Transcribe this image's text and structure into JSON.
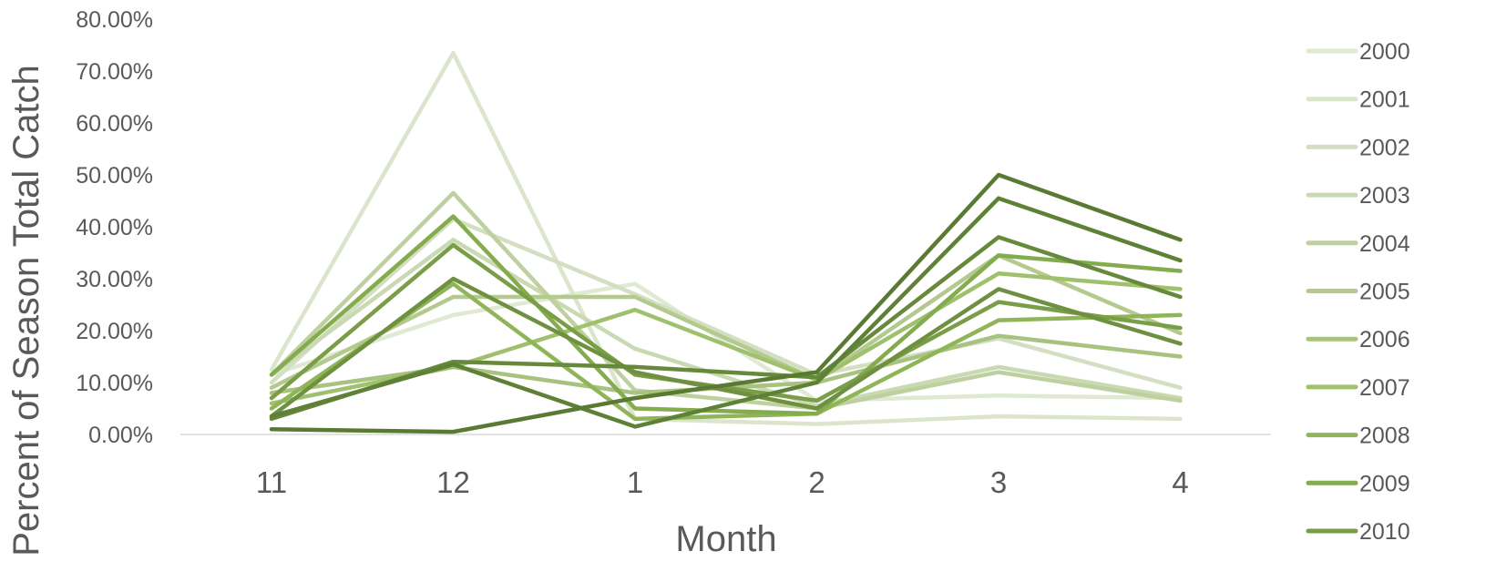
{
  "chart_data": {
    "type": "line",
    "title": "",
    "xlabel": "Month",
    "ylabel": "Percent of Season Total Catch",
    "categories": [
      "11",
      "12",
      "1",
      "2",
      "3",
      "4"
    ],
    "yticks": [
      "0.00%",
      "10.00%",
      "20.00%",
      "30.00%",
      "40.00%",
      "50.00%",
      "60.00%",
      "70.00%",
      "80.00%"
    ],
    "ylim": [
      0,
      80
    ],
    "grid": false,
    "legend_position": "right",
    "legend_labels": [
      "2000",
      "2001",
      "2002",
      "2003",
      "2004",
      "2005",
      "2006",
      "2007",
      "2008",
      "2009",
      "2010"
    ],
    "series": [
      {
        "name": "2000",
        "color": "#e0e9d2",
        "values": [
          11.5,
          23.0,
          29.0,
          6.5,
          7.5,
          7.0
        ]
      },
      {
        "name": "2001",
        "color": "#dbe5cb",
        "values": [
          12.5,
          73.5,
          3.0,
          2.0,
          3.5,
          3.0
        ]
      },
      {
        "name": "2002",
        "color": "#d3dfc0",
        "values": [
          10.0,
          41.5,
          27.0,
          11.5,
          18.5,
          9.0
        ]
      },
      {
        "name": "2003",
        "color": "#c9d9b2",
        "values": [
          11.5,
          37.5,
          16.5,
          5.5,
          13.0,
          7.0
        ]
      },
      {
        "name": "2004",
        "color": "#bed09f",
        "values": [
          11.5,
          46.5,
          8.5,
          5.0,
          12.0,
          6.5
        ]
      },
      {
        "name": "2005",
        "color": "#b3c98e",
        "values": [
          9.0,
          26.5,
          26.5,
          10.5,
          34.5,
          19.5
        ]
      },
      {
        "name": "2006",
        "color": "#a8c27f",
        "values": [
          8.0,
          13.0,
          8.0,
          10.0,
          19.0,
          15.0
        ]
      },
      {
        "name": "2007",
        "color": "#9fc06c",
        "values": [
          6.0,
          13.0,
          24.0,
          10.5,
          31.0,
          28.0
        ]
      },
      {
        "name": "2008",
        "color": "#90b558",
        "values": [
          5.0,
          29.0,
          3.0,
          4.0,
          22.0,
          23.0
        ]
      },
      {
        "name": "2009",
        "color": "#84ab4d",
        "values": [
          11.5,
          42.0,
          5.0,
          4.0,
          34.5,
          31.5
        ]
      },
      {
        "name": "2010",
        "color": "#7a9d47",
        "values": [
          7.0,
          36.5,
          11.5,
          6.5,
          25.5,
          20.5
        ]
      },
      {
        "name": "",
        "color": "#6f9040",
        "values": [
          3.5,
          30.0,
          12.0,
          5.0,
          28.0,
          17.5
        ]
      },
      {
        "name": "",
        "color": "#66893b",
        "values": [
          3.0,
          14.0,
          13.0,
          11.0,
          38.0,
          26.5
        ]
      },
      {
        "name": "",
        "color": "#5f8137",
        "values": [
          3.5,
          13.5,
          1.5,
          10.0,
          45.5,
          33.5
        ]
      },
      {
        "name": "",
        "color": "#5a7a33",
        "values": [
          1.0,
          0.5,
          7.0,
          12.0,
          50.0,
          37.5
        ]
      }
    ]
  }
}
